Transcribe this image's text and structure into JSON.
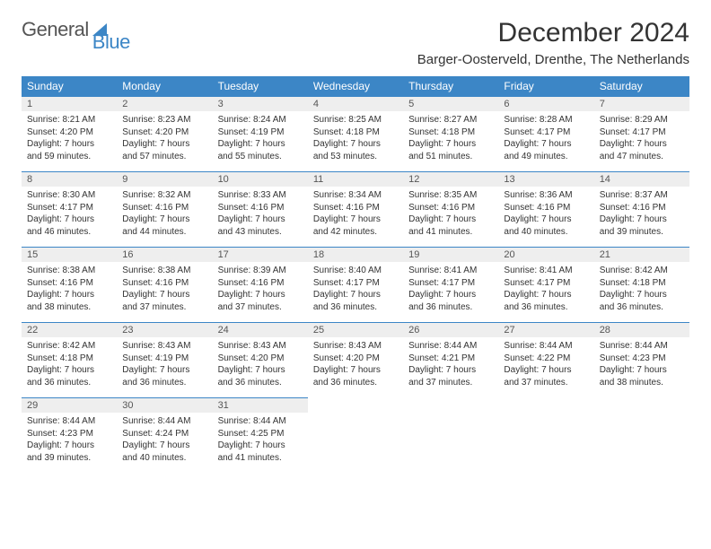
{
  "brand": {
    "part1": "General",
    "part2": "Blue"
  },
  "title": "December 2024",
  "subtitle": "Barger-Oosterveld, Drenthe, The Netherlands",
  "colors": {
    "accent": "#3c86c6",
    "header_bg": "#3c86c6",
    "header_text": "#ffffff",
    "daynum_bg": "#eeeeee",
    "daynum_border": "#3c86c6",
    "body_text": "#333333",
    "logo_gray": "#555555"
  },
  "weekdays": [
    "Sunday",
    "Monday",
    "Tuesday",
    "Wednesday",
    "Thursday",
    "Friday",
    "Saturday"
  ],
  "days": [
    {
      "n": "1",
      "sr": "8:21 AM",
      "ss": "4:20 PM",
      "dlh": "7",
      "dlm": "59"
    },
    {
      "n": "2",
      "sr": "8:23 AM",
      "ss": "4:20 PM",
      "dlh": "7",
      "dlm": "57"
    },
    {
      "n": "3",
      "sr": "8:24 AM",
      "ss": "4:19 PM",
      "dlh": "7",
      "dlm": "55"
    },
    {
      "n": "4",
      "sr": "8:25 AM",
      "ss": "4:18 PM",
      "dlh": "7",
      "dlm": "53"
    },
    {
      "n": "5",
      "sr": "8:27 AM",
      "ss": "4:18 PM",
      "dlh": "7",
      "dlm": "51"
    },
    {
      "n": "6",
      "sr": "8:28 AM",
      "ss": "4:17 PM",
      "dlh": "7",
      "dlm": "49"
    },
    {
      "n": "7",
      "sr": "8:29 AM",
      "ss": "4:17 PM",
      "dlh": "7",
      "dlm": "47"
    },
    {
      "n": "8",
      "sr": "8:30 AM",
      "ss": "4:17 PM",
      "dlh": "7",
      "dlm": "46"
    },
    {
      "n": "9",
      "sr": "8:32 AM",
      "ss": "4:16 PM",
      "dlh": "7",
      "dlm": "44"
    },
    {
      "n": "10",
      "sr": "8:33 AM",
      "ss": "4:16 PM",
      "dlh": "7",
      "dlm": "43"
    },
    {
      "n": "11",
      "sr": "8:34 AM",
      "ss": "4:16 PM",
      "dlh": "7",
      "dlm": "42"
    },
    {
      "n": "12",
      "sr": "8:35 AM",
      "ss": "4:16 PM",
      "dlh": "7",
      "dlm": "41"
    },
    {
      "n": "13",
      "sr": "8:36 AM",
      "ss": "4:16 PM",
      "dlh": "7",
      "dlm": "40"
    },
    {
      "n": "14",
      "sr": "8:37 AM",
      "ss": "4:16 PM",
      "dlh": "7",
      "dlm": "39"
    },
    {
      "n": "15",
      "sr": "8:38 AM",
      "ss": "4:16 PM",
      "dlh": "7",
      "dlm": "38"
    },
    {
      "n": "16",
      "sr": "8:38 AM",
      "ss": "4:16 PM",
      "dlh": "7",
      "dlm": "37"
    },
    {
      "n": "17",
      "sr": "8:39 AM",
      "ss": "4:16 PM",
      "dlh": "7",
      "dlm": "37"
    },
    {
      "n": "18",
      "sr": "8:40 AM",
      "ss": "4:17 PM",
      "dlh": "7",
      "dlm": "36"
    },
    {
      "n": "19",
      "sr": "8:41 AM",
      "ss": "4:17 PM",
      "dlh": "7",
      "dlm": "36"
    },
    {
      "n": "20",
      "sr": "8:41 AM",
      "ss": "4:17 PM",
      "dlh": "7",
      "dlm": "36"
    },
    {
      "n": "21",
      "sr": "8:42 AM",
      "ss": "4:18 PM",
      "dlh": "7",
      "dlm": "36"
    },
    {
      "n": "22",
      "sr": "8:42 AM",
      "ss": "4:18 PM",
      "dlh": "7",
      "dlm": "36"
    },
    {
      "n": "23",
      "sr": "8:43 AM",
      "ss": "4:19 PM",
      "dlh": "7",
      "dlm": "36"
    },
    {
      "n": "24",
      "sr": "8:43 AM",
      "ss": "4:20 PM",
      "dlh": "7",
      "dlm": "36"
    },
    {
      "n": "25",
      "sr": "8:43 AM",
      "ss": "4:20 PM",
      "dlh": "7",
      "dlm": "36"
    },
    {
      "n": "26",
      "sr": "8:44 AM",
      "ss": "4:21 PM",
      "dlh": "7",
      "dlm": "37"
    },
    {
      "n": "27",
      "sr": "8:44 AM",
      "ss": "4:22 PM",
      "dlh": "7",
      "dlm": "37"
    },
    {
      "n": "28",
      "sr": "8:44 AM",
      "ss": "4:23 PM",
      "dlh": "7",
      "dlm": "38"
    },
    {
      "n": "29",
      "sr": "8:44 AM",
      "ss": "4:23 PM",
      "dlh": "7",
      "dlm": "39"
    },
    {
      "n": "30",
      "sr": "8:44 AM",
      "ss": "4:24 PM",
      "dlh": "7",
      "dlm": "40"
    },
    {
      "n": "31",
      "sr": "8:44 AM",
      "ss": "4:25 PM",
      "dlh": "7",
      "dlm": "41"
    }
  ],
  "labels": {
    "sunrise": "Sunrise:",
    "sunset": "Sunset:",
    "daylight_prefix": "Daylight:",
    "hours_word": "hours",
    "and_word": "and",
    "minutes_word": "minutes."
  }
}
